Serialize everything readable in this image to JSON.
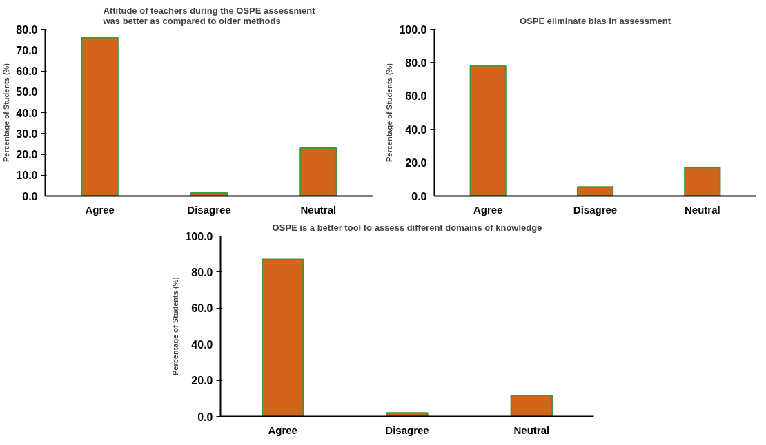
{
  "chart_data": [
    {
      "type": "bar",
      "title": "Attitude of teachers during the OSPE assessment was better as compared to older methods",
      "ylabel": "Percentage of Students (%)",
      "categories": [
        "Agree",
        "Disagree",
        "Neutral"
      ],
      "values": [
        76,
        1.5,
        23
      ],
      "color": "#d2651a",
      "ylim": [
        0,
        80
      ],
      "yticks": [
        {
          "value": 0,
          "label": "0.0"
        },
        {
          "value": 10,
          "label": "10.0"
        },
        {
          "value": 20,
          "label": "20.0"
        },
        {
          "value": 30,
          "label": "30.0"
        },
        {
          "value": 40,
          "label": "40.0"
        },
        {
          "value": 50,
          "label": "50.0"
        },
        {
          "value": 60,
          "label": "60.0"
        },
        {
          "value": 70,
          "label": "70.0"
        },
        {
          "value": 80,
          "label": "80.0"
        }
      ],
      "grid": false
    },
    {
      "type": "bar",
      "title": "OSPE eliminate bias in assessment",
      "ylabel": "Percentage of Students (%)",
      "categories": [
        "Agree",
        "Disagree",
        "Neutral"
      ],
      "values": [
        78,
        5.5,
        17
      ],
      "color": "#d2651a",
      "ylim": [
        0,
        100
      ],
      "yticks": [
        {
          "value": 0,
          "label": "0.0"
        },
        {
          "value": 20,
          "label": "20.0"
        },
        {
          "value": 40,
          "label": "40.0"
        },
        {
          "value": 60,
          "label": "60.0"
        },
        {
          "value": 80,
          "label": "80.0"
        },
        {
          "value": 100,
          "label": "100.0"
        }
      ],
      "grid": false
    },
    {
      "type": "bar",
      "title": "OSPE is a better tool to assess different domains of knowledge",
      "ylabel": "Percentage of Students (%)",
      "categories": [
        "Agree",
        "Disagree",
        "Neutral"
      ],
      "values": [
        87,
        2,
        11.5
      ],
      "color": "#d2651a",
      "ylim": [
        0,
        100
      ],
      "yticks": [
        {
          "value": 0,
          "label": "0.0"
        },
        {
          "value": 20,
          "label": "20.0"
        },
        {
          "value": 40,
          "label": "40.0"
        },
        {
          "value": 60,
          "label": "60.0"
        },
        {
          "value": 80,
          "label": "80.0"
        },
        {
          "value": 100,
          "label": "100.0"
        }
      ],
      "grid": false
    }
  ]
}
